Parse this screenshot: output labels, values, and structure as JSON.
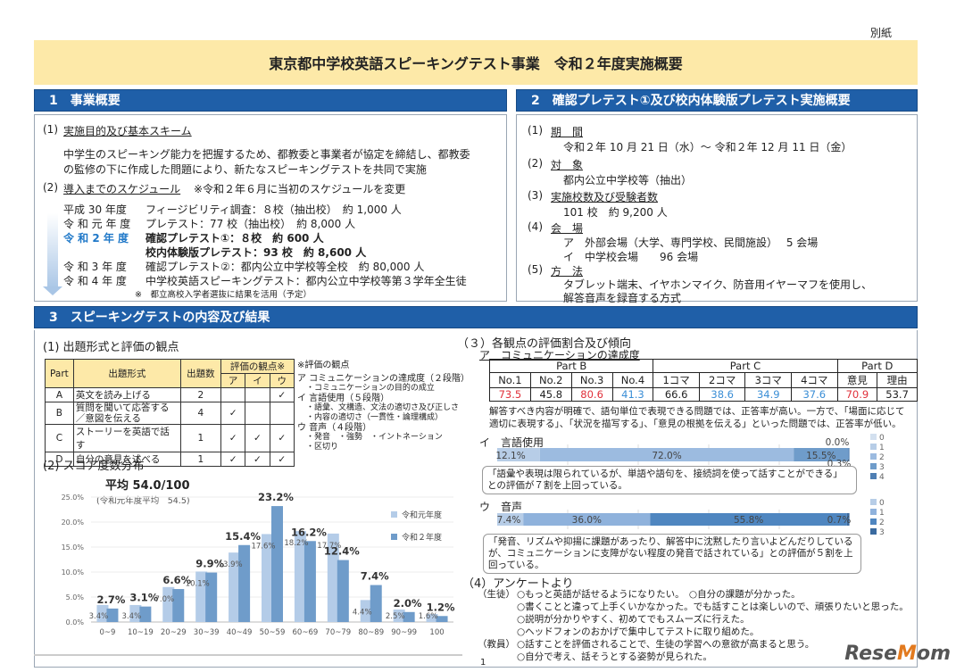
{
  "annex_label": "別紙",
  "title": "東京都中学校英語スピーキングテスト事業　令和２年度実施概要",
  "section1": {
    "header": "1　事業概要",
    "item1_num": "(1)",
    "item1_title": "実施目的及び基本スキーム",
    "item1_text": [
      "中学生のスピーキング能力を把握するため、都教委と事業者が協定を締結し、都教委",
      "の監修の下に作成した問題により、新たなスピーキングテストを共同で実施"
    ],
    "item2_num": "(2)",
    "item2_title": "導入までのスケジュール",
    "item2_note": "※令和２年６月に当初のスケジュールを変更",
    "schedule": [
      {
        "year": "平成 30 年度",
        "text": "フィージビリティ調査：８校（抽出校）　約 1,000 人"
      },
      {
        "year": "令 和 元 年 度",
        "text": "プレテスト：77 校（抽出校）　約 8,000 人"
      },
      {
        "year": "令 和 2 年 度",
        "text": "確認プレテスト①：８校　約 600 人"
      },
      {
        "year": "",
        "text": "校内体験版プレテスト：93 校　約 8,600 人"
      },
      {
        "year": "令 和 3 年 度",
        "text": "確認プレテスト②：都内公立中学校等全校　約 80,000 人"
      },
      {
        "year": "令 和 4 年 度",
        "text": "中学校英語スピーキングテスト：都内公立中学校等第３学年全生徒"
      }
    ],
    "schedule_note": "※　都立高校入学者選抜に結果を活用（予定）"
  },
  "section2": {
    "header": "2　確認プレテスト①及び校内体験版プレテスト実施概要",
    "items": [
      {
        "num": "(1)",
        "title": "期　間",
        "lines": [
          "令和２年 10 月 21 日（水）～ 令和２年 12 月 11 日（金）"
        ]
      },
      {
        "num": "(2)",
        "title": "対　象",
        "lines": [
          "都内公立中学校等（抽出）"
        ]
      },
      {
        "num": "(3)",
        "title": "実施校数及び受験者数",
        "lines": [
          "101 校　約 9,200 人"
        ]
      },
      {
        "num": "(4)",
        "title": "会　場",
        "lines": [
          "ア　外部会場（大学、専門学校、民間施設）　 5 会場",
          "イ　中学校会場　　96 会場"
        ]
      },
      {
        "num": "(5)",
        "title": "方　法",
        "lines": [
          "タブレット端末、イヤホンマイク、防音用イヤーマフを使用し、",
          "解答音声を録音する方式"
        ]
      }
    ]
  },
  "section3": {
    "header": "3　スピーキングテストの内容及び結果",
    "sub1": "(1)  出題形式と評価の観点",
    "table1": {
      "h_part": "Part",
      "h_format": "出題形式",
      "h_count": "出題数",
      "h_view": "評価の観点※",
      "h_a": "ア",
      "h_i": "イ",
      "h_u": "ウ",
      "rows": [
        {
          "part": "A",
          "format": "英文を読み上げる",
          "count": "2",
          "a": "",
          "i": "",
          "u": "✓"
        },
        {
          "part": "B",
          "format": "質問を聞いて応答する／意図を伝える",
          "count": "4",
          "a": "✓",
          "i": "",
          "u": ""
        },
        {
          "part": "C",
          "format": "ストーリーを英語で話す",
          "count": "1",
          "a": "✓",
          "i": "✓",
          "u": "✓"
        },
        {
          "part": "D",
          "format": "自分の意見を述べる",
          "count": "1",
          "a": "✓",
          "i": "✓",
          "u": "✓"
        }
      ]
    },
    "viewpoints": {
      "title": "※評価の観点",
      "lines": [
        "ア コミュニケーションの達成度（２段階）",
        "・コミュニケーションの目的の成立",
        "イ 言語使用（５段階）",
        "・語彙、文構造、文法の適切さ及び正しさ",
        "・内容の適切さ（一貫性・論理構成）",
        "ウ 音声（４段階）",
        "・発音　・強勢　・イントネーション",
        "・区切り"
      ]
    },
    "sub2": "(2)  スコア度数分布",
    "avg_label": "平均 54.0/100",
    "prev_avg": "(令和元年度平均　54.5)",
    "sub3": "（３）各観点の評価割合及び傾向",
    "sub3a": "ア　コミュニケーションの達成度",
    "table2": {
      "groups": [
        "Part B",
        "Part C",
        "Part D"
      ],
      "cols": [
        "No.1",
        "No.2",
        "No.3",
        "No.4",
        "1コマ",
        "2コマ",
        "3コマ",
        "4コマ",
        "意見",
        "理由"
      ],
      "values": [
        "73.5",
        "45.8",
        "80.6",
        "41.3",
        "66.6",
        "38.6",
        "34.9",
        "37.6",
        "70.9",
        "53.7"
      ],
      "value_colors": [
        "#e0303a",
        "#222222",
        "#e0303a",
        "#3a8ed6",
        "#222222",
        "#3a8ed6",
        "#3a8ed6",
        "#3a8ed6",
        "#e0303a",
        "#222222"
      ]
    },
    "sub3a_text": [
      "解答すべき内容が明確で、語句単位で表現できる問題では、正答率が高い。一方で、「場面に応じて",
      "適切に表現する」、「状況を描写する」、「意見の根拠を伝える」といった問題では、正答率が低い。"
    ],
    "sub3b": "イ　言語使用",
    "sub3b_callout": "「語彙や表現は限られているが、単語や語句を、接続詞を使って話すことができる」との評価が７割を上回っている。",
    "sub3c": "ウ　音声",
    "sub3c_callout": "「発音、リズムや抑揚に課題があったり、解答中に沈黙したり言いよどんだりしているが、コミュニケーションに支障がない程度の発音で話されている」との評価が５割を上回っている。",
    "sub4": "（4）アンケートより",
    "survey": [
      {
        "who": "（生徒）",
        "text": "○もっと英語が話せるようになりたい。　○自分の課題が分かった。"
      },
      {
        "who": "",
        "text": "○書くことと違って上手くいかなかった。でも話すことは楽しいので、頑張りたいと思った。"
      },
      {
        "who": "",
        "text": "○説明が分かりやすく、初めてでもスムーズに行えた。"
      },
      {
        "who": "",
        "text": "○ヘッドフォンのおかげで集中してテストに取り組めた。"
      },
      {
        "who": "（教員）",
        "text": "○話すことを評価されることで、生徒の学習への意欲が高まると思う。"
      },
      {
        "who": "",
        "text": "○自分で考え、話そうとする姿勢が見られた。"
      }
    ]
  },
  "page_number": "1",
  "watermark": "ReseMom",
  "colors": {
    "banner": "#fde9a8",
    "header": "#1f5fa8",
    "bar_prev": "#b4cce8",
    "bar_curr": "#6f9cca",
    "accent_blue": "#1f78c8"
  },
  "chart_data": [
    {
      "type": "bar",
      "categories": [
        "0~9",
        "10~19",
        "20~29",
        "30~39",
        "40~49",
        "50~59",
        "60~69",
        "70~79",
        "80~89",
        "90~99",
        "100"
      ],
      "series": [
        {
          "name": "令和元年度",
          "values": [
            3.4,
            3.4,
            7.0,
            10.1,
            13.9,
            17.6,
            18.2,
            17.7,
            4.4,
            2.5,
            1.6
          ]
        },
        {
          "name": "令和２年度",
          "values": [
            2.7,
            3.1,
            6.6,
            9.9,
            15.4,
            23.2,
            16.2,
            12.4,
            7.4,
            2.0,
            1.2
          ]
        }
      ],
      "yticks": [
        "0.0%",
        "5.0%",
        "10.0%",
        "15.0%",
        "20.0%",
        "25.0%"
      ],
      "ylim": [
        0,
        25
      ],
      "legend": "right",
      "grid": true
    },
    {
      "type": "bar",
      "stacked": true,
      "orientation": "horizontal",
      "title": "イ　言語使用",
      "legend_labels": [
        "0",
        "1",
        "2",
        "3",
        "4"
      ],
      "values": [
        0.0,
        12.1,
        72.0,
        15.5,
        0.3
      ],
      "labels": [
        "0.0%",
        "12.1%",
        "72.0%",
        "15.5%",
        "0.3%"
      ],
      "colors": [
        "#d3e0ef",
        "#b7cde7",
        "#9cbbe0",
        "#6f9cca",
        "#4f7fb3"
      ]
    },
    {
      "type": "bar",
      "stacked": true,
      "orientation": "horizontal",
      "title": "ウ　音声",
      "legend_labels": [
        "0",
        "1",
        "2",
        "3"
      ],
      "values": [
        7.4,
        36.0,
        55.8,
        0.7
      ],
      "labels": [
        "7.4%",
        "36.0%",
        "55.8%",
        "0.7%"
      ],
      "colors": [
        "#b7cde7",
        "#8fb2dc",
        "#4f86c0",
        "#3a6a9f"
      ]
    }
  ]
}
